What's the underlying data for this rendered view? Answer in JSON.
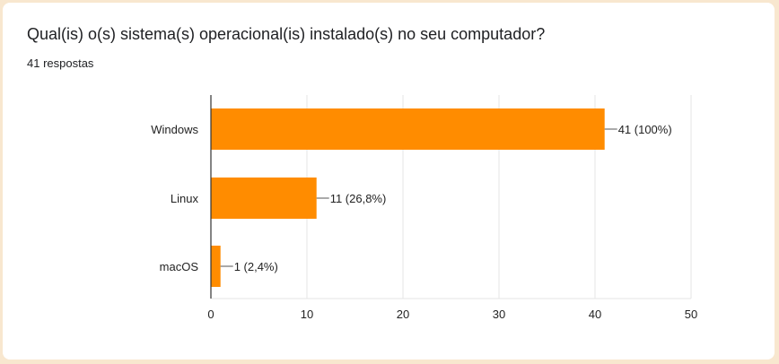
{
  "question": {
    "title": "Qual(is) o(s) sistema(s) operacional(is) instalado(s) no seu computador?",
    "responses_label": "41 respostas"
  },
  "colors": {
    "bar": "#ff8c00",
    "grid": "#e6e6e6",
    "axis": "#333333",
    "page_background": "#f8e7cf"
  },
  "chart_data": {
    "type": "bar",
    "orientation": "horizontal",
    "categories": [
      "Windows",
      "Linux",
      "macOS"
    ],
    "values": [
      41,
      11,
      1
    ],
    "data_labels": [
      "41 (100%)",
      "11 (26,8%)",
      "1 (2,4%)"
    ],
    "xlim": [
      0,
      50
    ],
    "xticks": [
      0,
      10,
      20,
      30,
      40,
      50
    ],
    "xlabel": "",
    "ylabel": "",
    "grid": true,
    "legend": "none"
  }
}
